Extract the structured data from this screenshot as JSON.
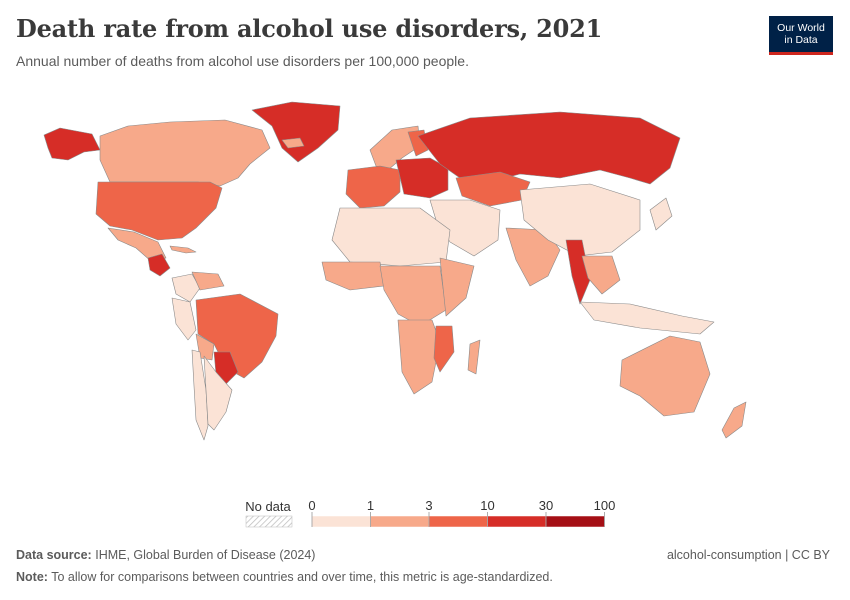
{
  "header": {
    "title": "Death rate from alcohol use disorders, 2021",
    "subtitle": "Annual number of deaths from alcohol use disorders per 100,000 people."
  },
  "logo": {
    "line1": "Our World",
    "line2": "in Data"
  },
  "colors": {
    "bin0": "#fbe3d6",
    "bin1": "#f7a98a",
    "bin2": "#ee6549",
    "bin3": "#d62d27",
    "bin4": "#a50f15",
    "border": "#8a8a8a",
    "nodata": "#e6e6e6"
  },
  "legend": {
    "no_data_label": "No data",
    "ticks": [
      "0",
      "1",
      "3",
      "10",
      "30",
      "100"
    ]
  },
  "map_data": {
    "metric": "Death rate from alcohol use disorders per 100,000",
    "year": "2021",
    "regions": [
      {
        "name": "Alaska",
        "bin": 3
      },
      {
        "name": "Canada",
        "bin": 1
      },
      {
        "name": "Greenland",
        "bin": 3
      },
      {
        "name": "United States",
        "bin": 2
      },
      {
        "name": "Mexico",
        "bin": 1
      },
      {
        "name": "Guatemala",
        "bin": 3
      },
      {
        "name": "Cuba",
        "bin": 1
      },
      {
        "name": "Colombia",
        "bin": 0
      },
      {
        "name": "Venezuela",
        "bin": 1
      },
      {
        "name": "Peru",
        "bin": 0
      },
      {
        "name": "Brazil",
        "bin": 2
      },
      {
        "name": "Paraguay",
        "bin": 3
      },
      {
        "name": "Bolivia",
        "bin": 1
      },
      {
        "name": "Chile",
        "bin": 0
      },
      {
        "name": "Argentina",
        "bin": 0
      },
      {
        "name": "Iceland",
        "bin": 1
      },
      {
        "name": "Scandinavia",
        "bin": 1
      },
      {
        "name": "Finland",
        "bin": 2
      },
      {
        "name": "Western Europe",
        "bin": 2
      },
      {
        "name": "Eastern Europe",
        "bin": 3
      },
      {
        "name": "Russia",
        "bin": 3
      },
      {
        "name": "Kazakhstan",
        "bin": 2
      },
      {
        "name": "Middle East",
        "bin": 0
      },
      {
        "name": "North Africa",
        "bin": 0
      },
      {
        "name": "West Africa",
        "bin": 1
      },
      {
        "name": "Central Africa",
        "bin": 1
      },
      {
        "name": "East Africa",
        "bin": 1
      },
      {
        "name": "Southern Africa",
        "bin": 1
      },
      {
        "name": "Mozambique",
        "bin": 2
      },
      {
        "name": "Madagascar",
        "bin": 1
      },
      {
        "name": "India",
        "bin": 1
      },
      {
        "name": "China",
        "bin": 0
      },
      {
        "name": "Myanmar",
        "bin": 3
      },
      {
        "name": "Southeast Asia",
        "bin": 1
      },
      {
        "name": "Indonesia",
        "bin": 0
      },
      {
        "name": "Japan",
        "bin": 0
      },
      {
        "name": "Australia",
        "bin": 1
      },
      {
        "name": "New Zealand",
        "bin": 1
      }
    ]
  },
  "footer": {
    "source_label": "Data source:",
    "source_text": "IHME, Global Burden of Disease (2024)",
    "note_label": "Note:",
    "note_text": "To allow for comparisons between countries and over time, this metric is age-standardized.",
    "license": "alcohol-consumption | CC BY"
  }
}
